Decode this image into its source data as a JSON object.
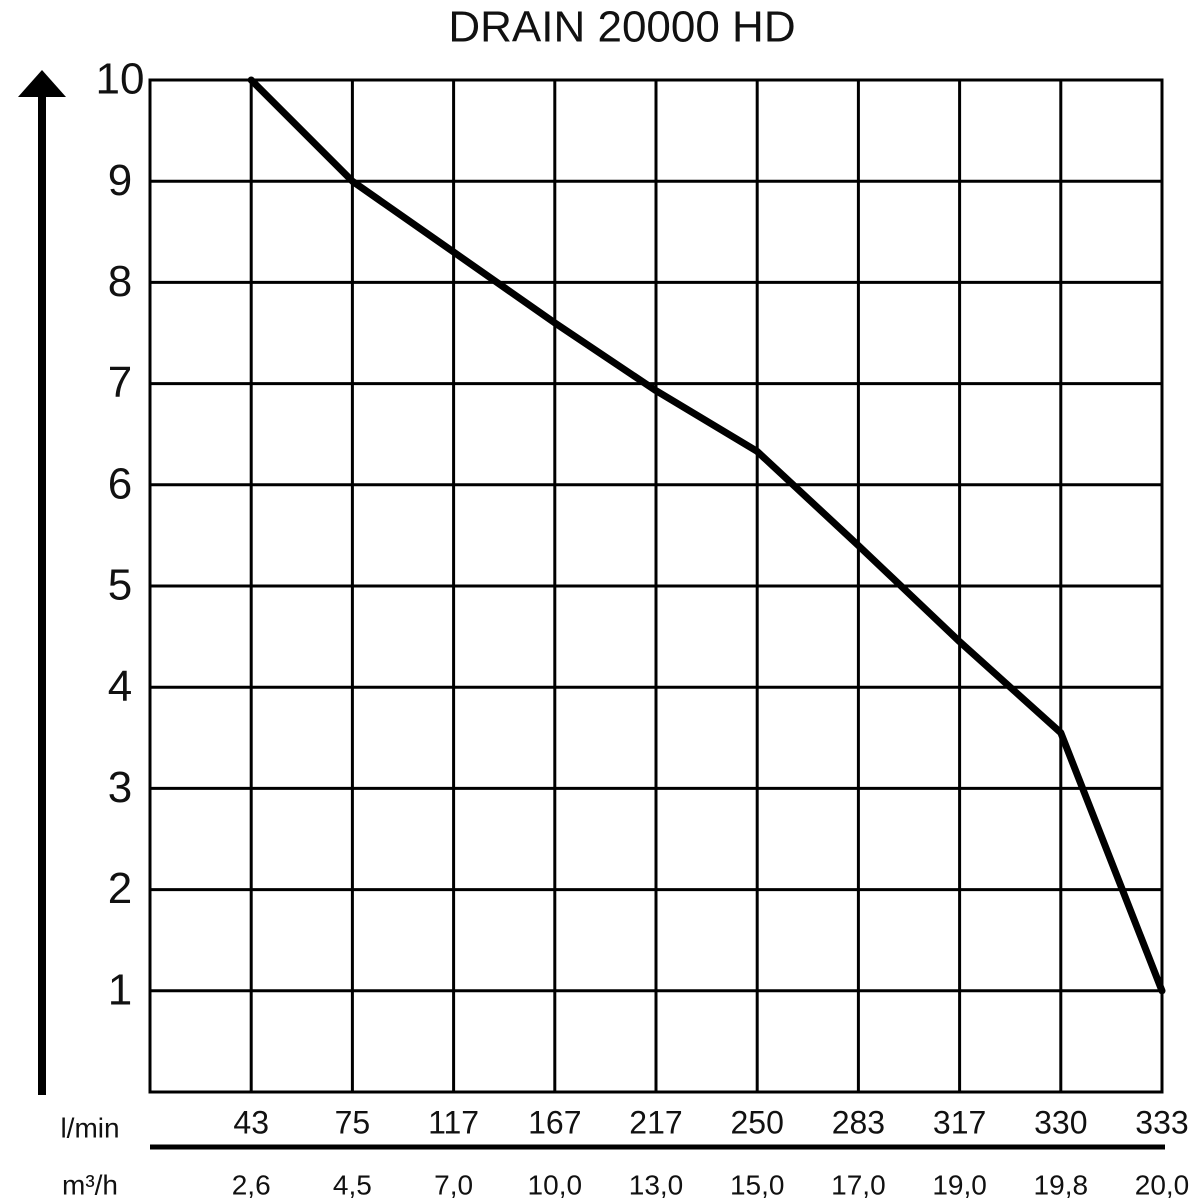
{
  "chart_data": {
    "type": "line",
    "title": "DRAIN 20000 HD",
    "x_label": "l/min",
    "x2_label": "m³/h",
    "categories": [
      "43",
      "75",
      "117",
      "167",
      "217",
      "250",
      "283",
      "317",
      "330",
      "333"
    ],
    "categories2": [
      "2,6",
      "4,5",
      "7,0",
      "10,0",
      "13,0",
      "15,0",
      "17,0",
      "19,0",
      "19,8",
      "20,0"
    ],
    "series": [
      {
        "name": "DRAIN 20000 HD",
        "color": "#000000",
        "values": [
          10,
          9.0,
          8.3,
          7.6,
          6.93,
          6.33,
          5.4,
          4.45,
          3.55,
          1.0
        ]
      }
    ],
    "ylim": [
      0,
      10
    ],
    "yticks": [
      1,
      2,
      3,
      4,
      5,
      6,
      7,
      8,
      9,
      10
    ],
    "grid": true
  }
}
